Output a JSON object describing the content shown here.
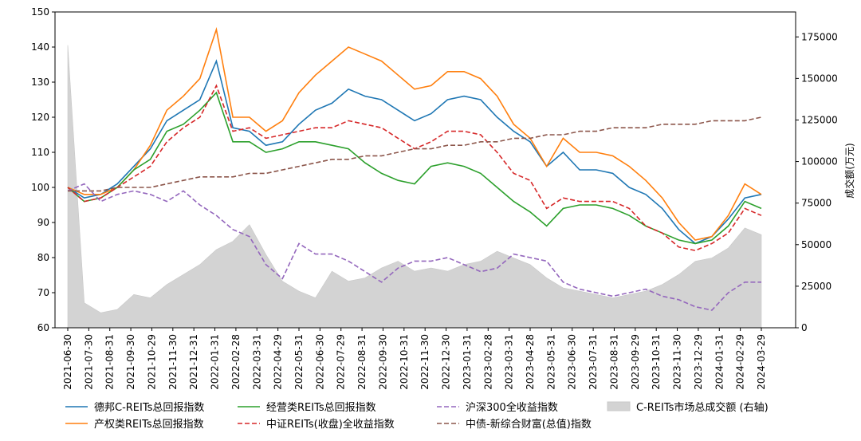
{
  "chart_data": {
    "type": "line",
    "title": "",
    "y_left": {
      "label": "",
      "min": 60,
      "max": 150,
      "ticks": [
        60,
        70,
        80,
        90,
        100,
        110,
        120,
        130,
        140,
        150
      ]
    },
    "y_right": {
      "label": "成交额(万元)",
      "min": 0,
      "max": 190000,
      "ticks": [
        0,
        25000,
        50000,
        75000,
        100000,
        125000,
        150000,
        175000
      ]
    },
    "x_ticks": [
      "2021-06-30",
      "2021-07-30",
      "2021-08-31",
      "2021-09-30",
      "2021-10-29",
      "2021-11-30",
      "2021-12-31",
      "2022-01-31",
      "2022-02-28",
      "2022-03-31",
      "2022-04-29",
      "2022-05-31",
      "2022-06-30",
      "2022-07-29",
      "2022-08-31",
      "2022-09-30",
      "2022-10-31",
      "2022-11-30",
      "2022-12-30",
      "2023-01-31",
      "2023-02-28",
      "2023-03-31",
      "2023-04-28",
      "2023-05-31",
      "2023-06-30",
      "2023-07-31",
      "2023-08-31",
      "2023-09-29",
      "2023-10-31",
      "2023-11-30",
      "2023-12-29",
      "2024-01-31",
      "2024-02-29",
      "2024-03-29"
    ],
    "legend": [
      {
        "key": "debang",
        "label": "德邦C-REITs总回报指数",
        "color": "#1f77b4",
        "style": "solid"
      },
      {
        "key": "jingying",
        "label": "经营类REITs总回报指数",
        "color": "#2ca02c",
        "style": "solid"
      },
      {
        "key": "hs300",
        "label": "沪深300全收益指数",
        "color": "#9467bd",
        "style": "dashed"
      },
      {
        "key": "volume",
        "label": "C-REITs市场总成交额 (右轴)",
        "color": "#d3d3d3",
        "style": "area"
      },
      {
        "key": "chanquan",
        "label": "产权类REITs总回报指数",
        "color": "#ff7f0e",
        "style": "solid"
      },
      {
        "key": "zhongzheng",
        "label": "中证REITs(收盘)全收益指数",
        "color": "#d62728",
        "style": "dashed"
      },
      {
        "key": "zhongzhai",
        "label": "中债-新综合财富(总值)指数",
        "color": "#8c564b",
        "style": "dashed"
      }
    ],
    "series": [
      {
        "key": "debang",
        "name": "德邦C-REITs总回报指数",
        "axis": "left",
        "values": [
          100,
          97,
          98,
          101,
          106,
          111,
          119,
          122,
          125,
          136,
          117,
          116,
          112,
          113,
          118,
          122,
          124,
          128,
          126,
          125,
          122,
          119,
          121,
          125,
          126,
          125,
          120,
          116,
          113,
          106,
          110,
          105,
          105,
          104,
          100,
          98,
          94,
          88,
          84,
          86,
          91,
          97,
          98
        ]
      },
      {
        "key": "chanquan",
        "name": "产权类REITs总回报指数",
        "axis": "left",
        "values": [
          100,
          98,
          98,
          100,
          105,
          112,
          122,
          126,
          131,
          145,
          120,
          120,
          116,
          119,
          127,
          132,
          136,
          140,
          138,
          136,
          132,
          128,
          129,
          133,
          133,
          131,
          126,
          118,
          114,
          106,
          114,
          110,
          110,
          109,
          106,
          102,
          97,
          90,
          85,
          86,
          92,
          101,
          98
        ]
      },
      {
        "key": "jingying",
        "name": "经营类REITs总回报指数",
        "axis": "left",
        "values": [
          100,
          96,
          97,
          100,
          105,
          108,
          116,
          118,
          122,
          127,
          113,
          113,
          110,
          111,
          113,
          113,
          112,
          111,
          107,
          104,
          102,
          101,
          106,
          107,
          106,
          104,
          100,
          96,
          93,
          89,
          94,
          95,
          95,
          94,
          92,
          89,
          87,
          85,
          84,
          85,
          89,
          96,
          94
        ]
      },
      {
        "key": "zhongzheng",
        "name": "中证REITs(收盘)全收益指数",
        "axis": "left",
        "values": [
          100,
          96,
          97,
          100,
          103,
          106,
          113,
          117,
          120,
          129,
          116,
          117,
          114,
          115,
          116,
          117,
          117,
          119,
          118,
          117,
          114,
          111,
          113,
          116,
          116,
          115,
          110,
          104,
          102,
          94,
          97,
          96,
          96,
          96,
          94,
          89,
          87,
          83,
          82,
          84,
          87,
          94,
          92
        ]
      },
      {
        "key": "hs300",
        "name": "沪深300全收益指数",
        "axis": "left",
        "values": [
          99,
          101,
          96,
          98,
          99,
          98,
          96,
          99,
          95,
          92,
          88,
          86,
          78,
          74,
          84,
          81,
          81,
          79,
          76,
          73,
          77,
          79,
          79,
          80,
          78,
          76,
          77,
          81,
          80,
          79,
          73,
          71,
          70,
          69,
          70,
          71,
          69,
          68,
          66,
          65,
          70,
          73,
          73
        ]
      },
      {
        "key": "zhongzhai",
        "name": "中债-新综合财富(总值)指数",
        "axis": "left",
        "values": [
          99,
          99,
          99,
          100,
          100,
          100,
          101,
          102,
          103,
          103,
          103,
          104,
          104,
          105,
          106,
          107,
          108,
          108,
          109,
          109,
          110,
          111,
          111,
          112,
          112,
          113,
          113,
          114,
          114,
          115,
          115,
          116,
          116,
          117,
          117,
          117,
          118,
          118,
          118,
          119,
          119,
          119,
          120
        ]
      },
      {
        "key": "volume",
        "name": "C-REITs市场总成交额 (右轴)",
        "axis": "right",
        "values": [
          170000,
          15000,
          9000,
          11000,
          20000,
          18000,
          26000,
          32000,
          38000,
          47000,
          52000,
          62000,
          44000,
          28000,
          22000,
          18000,
          34000,
          28000,
          30000,
          36000,
          40000,
          34000,
          36000,
          34000,
          38000,
          40000,
          46000,
          42000,
          38000,
          30000,
          24000,
          22000,
          20000,
          18000,
          20000,
          22000,
          26000,
          32000,
          40000,
          42000,
          48000,
          60000,
          56000
        ]
      }
    ]
  }
}
